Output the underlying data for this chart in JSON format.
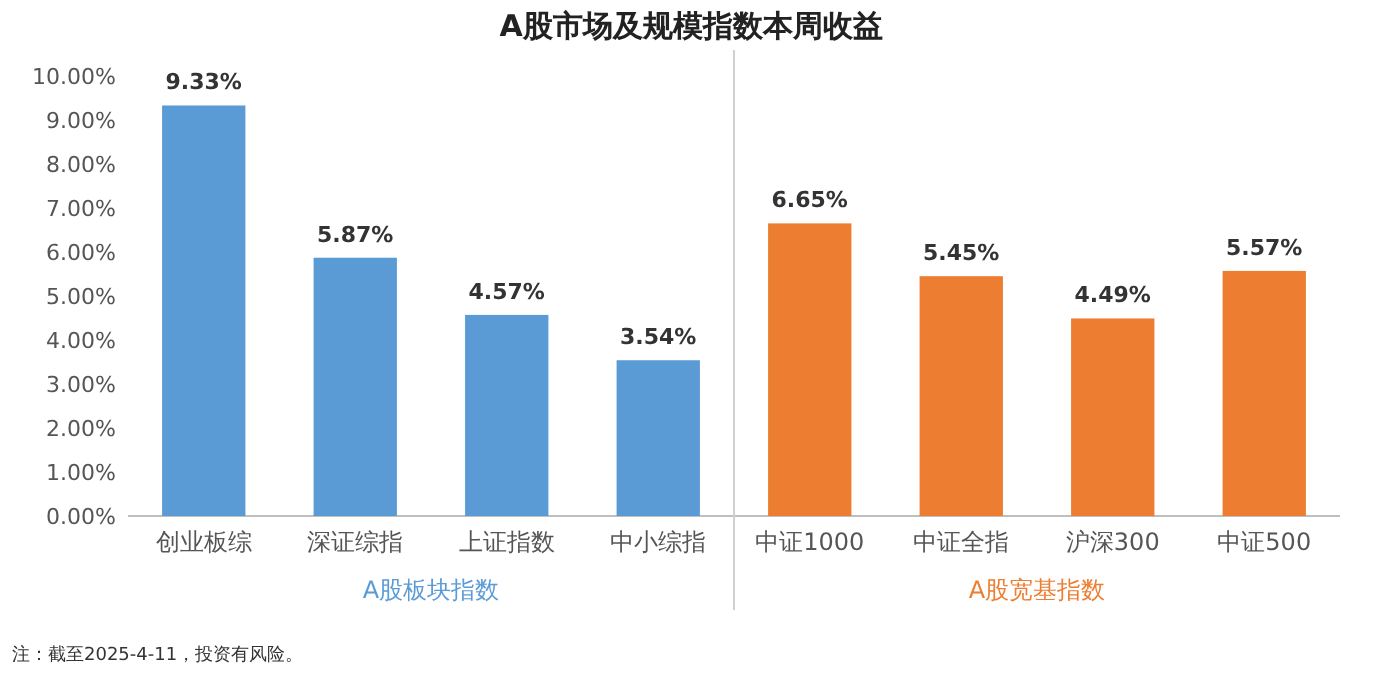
{
  "chart_data": {
    "type": "bar",
    "title": "A股市场及规模指数本周收益",
    "categories": [
      "创业板综",
      "深证综指",
      "上证指数",
      "中小综指",
      "中证1000",
      "中证全指",
      "沪深300",
      "中证500"
    ],
    "values": [
      9.33,
      5.87,
      4.57,
      3.54,
      6.65,
      5.45,
      4.49,
      5.57
    ],
    "colors": [
      "#5b9bd5",
      "#5b9bd5",
      "#5b9bd5",
      "#5b9bd5",
      "#ed7d31",
      "#ed7d31",
      "#ed7d31",
      "#ed7d31"
    ],
    "value_labels": [
      "9.33%",
      "5.87%",
      "4.57%",
      "3.54%",
      "6.65%",
      "5.45%",
      "4.49%",
      "5.57%"
    ],
    "ylim": [
      0,
      10
    ],
    "yticks": [
      {
        "value": 0,
        "label": "0.00%"
      },
      {
        "value": 1,
        "label": "1.00%"
      },
      {
        "value": 2,
        "label": "2.00%"
      },
      {
        "value": 3,
        "label": "3.00%"
      },
      {
        "value": 4,
        "label": "4.00%"
      },
      {
        "value": 5,
        "label": "5.00%"
      },
      {
        "value": 6,
        "label": "6.00%"
      },
      {
        "value": 7,
        "label": "7.00%"
      },
      {
        "value": 8,
        "label": "8.00%"
      },
      {
        "value": 9,
        "label": "9.00%"
      },
      {
        "value": 10,
        "label": "10.00%"
      }
    ],
    "annotations": [
      "A股板块指数",
      "A股宽基指数",
      "注：截至2025-4-11，投资有风险。"
    ]
  }
}
